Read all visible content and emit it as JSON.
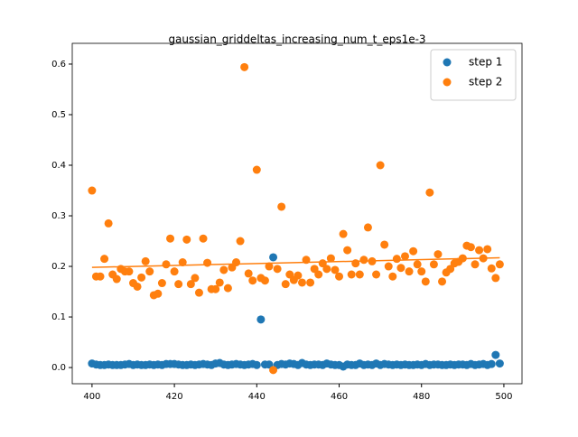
{
  "chart_data": {
    "type": "scatter",
    "title": "gaussian_griddeltas_increasing_num_t_eps1e-3",
    "x": [
      400,
      401,
      402,
      403,
      404,
      405,
      406,
      407,
      408,
      409,
      410,
      411,
      412,
      413,
      414,
      415,
      416,
      417,
      418,
      419,
      420,
      421,
      422,
      423,
      424,
      425,
      426,
      427,
      428,
      429,
      430,
      431,
      432,
      433,
      434,
      435,
      436,
      437,
      438,
      439,
      440,
      441,
      442,
      443,
      444,
      445,
      446,
      447,
      448,
      449,
      450,
      451,
      452,
      453,
      454,
      455,
      456,
      457,
      458,
      459,
      460,
      461,
      462,
      463,
      464,
      465,
      466,
      467,
      468,
      469,
      470,
      471,
      472,
      473,
      474,
      475,
      476,
      477,
      478,
      479,
      480,
      481,
      482,
      483,
      484,
      485,
      486,
      487,
      488,
      489,
      490,
      491,
      492,
      493,
      494,
      495,
      496,
      497,
      498,
      499
    ],
    "series": [
      {
        "name": "step 1",
        "color": "#1f77b4",
        "values": [
          0.008,
          0.006,
          0.005,
          0.005,
          0.006,
          0.005,
          0.005,
          0.005,
          0.006,
          0.007,
          0.005,
          0.006,
          0.005,
          0.005,
          0.006,
          0.005,
          0.006,
          0.005,
          0.007,
          0.007,
          0.007,
          0.006,
          0.005,
          0.005,
          0.006,
          0.005,
          0.006,
          0.007,
          0.006,
          0.005,
          0.008,
          0.009,
          0.006,
          0.005,
          0.006,
          0.007,
          0.006,
          0.005,
          0.006,
          0.007,
          0.005,
          0.095,
          0.006,
          0.006,
          0.218,
          0.005,
          0.007,
          0.006,
          0.008,
          0.007,
          0.005,
          0.009,
          0.006,
          0.005,
          0.006,
          0.006,
          0.005,
          0.008,
          0.006,
          0.005,
          0.005,
          0.002,
          0.006,
          0.005,
          0.005,
          0.008,
          0.005,
          0.006,
          0.005,
          0.008,
          0.005,
          0.007,
          0.006,
          0.005,
          0.006,
          0.005,
          0.006,
          0.005,
          0.005,
          0.006,
          0.005,
          0.007,
          0.005,
          0.006,
          0.006,
          0.005,
          0.005,
          0.006,
          0.005,
          0.006,
          0.006,
          0.005,
          0.007,
          0.005,
          0.006,
          0.007,
          0.005,
          0.007,
          0.025,
          0.008
        ]
      },
      {
        "name": "step 2",
        "color": "#ff7f0e",
        "values": [
          0.35,
          0.18,
          0.18,
          0.215,
          0.285,
          0.184,
          0.175,
          0.195,
          0.19,
          0.19,
          0.167,
          0.16,
          0.178,
          0.21,
          0.19,
          0.143,
          0.146,
          0.167,
          0.204,
          0.255,
          0.19,
          0.165,
          0.208,
          0.253,
          0.165,
          0.177,
          0.148,
          0.255,
          0.207,
          0.155,
          0.155,
          0.168,
          0.193,
          0.157,
          0.198,
          0.208,
          0.25,
          0.594,
          0.186,
          0.172,
          0.391,
          0.177,
          0.172,
          0.2,
          -0.005,
          0.195,
          0.318,
          0.165,
          0.184,
          0.173,
          0.182,
          0.168,
          0.213,
          0.168,
          0.195,
          0.184,
          0.206,
          0.195,
          0.216,
          0.193,
          0.18,
          0.264,
          0.232,
          0.184,
          0.206,
          0.184,
          0.213,
          0.277,
          0.21,
          0.184,
          0.4,
          0.243,
          0.2,
          0.18,
          0.215,
          0.197,
          0.22,
          0.19,
          0.23,
          0.204,
          0.19,
          0.17,
          0.346,
          0.204,
          0.224,
          0.17,
          0.188,
          0.195,
          0.206,
          0.209,
          0.216,
          0.241,
          0.238,
          0.204,
          0.232,
          0.216,
          0.234,
          0.196,
          0.177,
          0.204
        ]
      }
    ],
    "trend": {
      "color": "#ff7f0e",
      "x": [
        400,
        499
      ],
      "values": [
        0.198,
        0.217
      ]
    },
    "xlim": [
      395.2,
      504.4
    ],
    "ylim": [
      -0.032,
      0.641
    ],
    "xticks": [
      400,
      420,
      440,
      460,
      480,
      500
    ],
    "yticks": [
      {
        "value": 0,
        "label": "0.0"
      },
      0.1,
      0.2,
      0.3,
      0.4,
      0.5,
      0.6
    ],
    "legend": "upper right"
  }
}
